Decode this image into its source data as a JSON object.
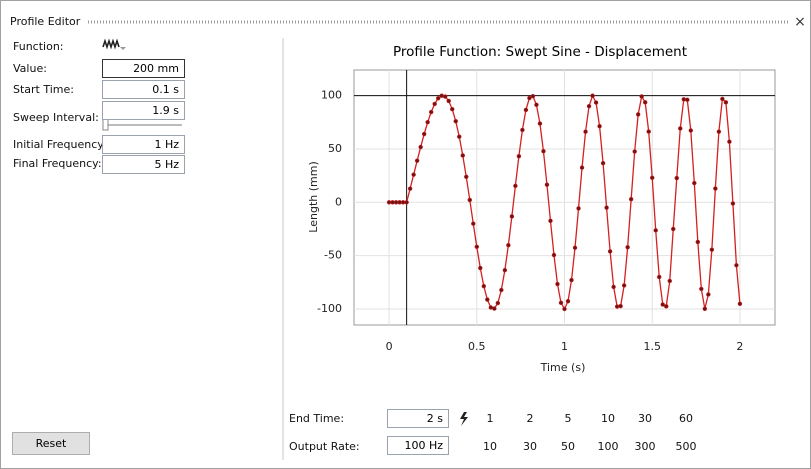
{
  "window": {
    "title": "Profile Editor"
  },
  "form": {
    "fields": [
      {
        "label": "Function:"
      },
      {
        "label": "Value:",
        "value": "200 mm"
      },
      {
        "label": "Start Time:",
        "value": "0.1 s"
      },
      {
        "label": "Sweep Interval:",
        "value": "1.9 s"
      },
      {
        "label": "Initial Frequency:",
        "value": "1 Hz"
      },
      {
        "label": "Final Frequency:",
        "value": "5 Hz"
      }
    ],
    "reset": "Reset"
  },
  "end_time": {
    "label": "End Time:",
    "value": "2 s",
    "presets": [
      "1",
      "2",
      "5",
      "10",
      "30",
      "60"
    ]
  },
  "output_rate": {
    "label": "Output Rate:",
    "value": "100 Hz",
    "presets": [
      "10",
      "30",
      "50",
      "100",
      "300",
      "500"
    ]
  },
  "chart_data": {
    "type": "line",
    "title": "Profile Function: Swept Sine - Displacement",
    "x_label": "Time (s)",
    "y_label": "Length (mm)",
    "x": [
      0,
      0.02,
      0.04,
      0.06,
      0.08,
      0.1,
      0.12,
      0.14,
      0.16,
      0.18,
      0.2,
      0.22,
      0.24,
      0.26,
      0.28,
      0.3,
      0.32,
      0.34,
      0.36,
      0.38,
      0.4,
      0.42,
      0.44,
      0.46,
      0.48,
      0.5,
      0.52,
      0.54,
      0.56,
      0.58,
      0.6,
      0.62,
      0.64,
      0.66,
      0.68,
      0.7,
      0.72,
      0.74,
      0.76,
      0.78,
      0.8,
      0.82,
      0.84,
      0.86,
      0.88,
      0.9,
      0.92,
      0.94,
      0.96,
      0.98,
      1,
      1.02,
      1.04,
      1.06,
      1.08,
      1.1,
      1.12,
      1.14,
      1.16,
      1.18,
      1.2,
      1.22,
      1.24,
      1.26,
      1.28,
      1.3,
      1.32,
      1.34,
      1.36,
      1.38,
      1.4,
      1.42,
      1.44,
      1.46,
      1.48,
      1.5,
      1.52,
      1.54,
      1.56,
      1.58,
      1.6,
      1.62,
      1.64,
      1.66,
      1.68,
      1.7,
      1.72,
      1.74,
      1.76,
      1.78,
      1.8,
      1.82,
      1.84,
      1.86,
      1.88,
      1.9,
      1.92,
      1.94,
      1.96,
      1.98,
      2
    ],
    "values": [
      0,
      0,
      0,
      0,
      0,
      0,
      12.8,
      25.9,
      39.0,
      51.8,
      64.0,
      75.1,
      84.6,
      92.2,
      97.5,
      99.9,
      99.1,
      95.0,
      87.3,
      76.0,
      61.5,
      43.9,
      23.9,
      2.2,
      -20.0,
      -41.7,
      -61.6,
      -78.6,
      -91.2,
      -98.6,
      -99.6,
      -94.4,
      -82.2,
      -63.6,
      -40.2,
      -13.2,
      15.4,
      43.2,
      67.8,
      86.6,
      97.7,
      99.5,
      91.4,
      73.8,
      47.9,
      16.5,
      -17.4,
      -49.4,
      -76.6,
      -94.2,
      -100,
      -92.7,
      -72.9,
      -42.6,
      -5.7,
      32.5,
      66.2,
      90.1,
      99.9,
      93.5,
      71.3,
      36.7,
      -5.0,
      -46.0,
      -79.3,
      -97.7,
      -97.3,
      -77.9,
      -42.1,
      2.9,
      47.6,
      82.4,
      99.2,
      93.7,
      66.3,
      23.0,
      -26.3,
      -70.0,
      -95.8,
      -97.5,
      -73.7,
      -25.0,
      22.7,
      69.2,
      96.5,
      96.1,
      67.3,
      18.0,
      -37.2,
      -81.2,
      -99.8,
      -86.4,
      -44.4,
      12.9,
      66.2,
      96.9,
      93.7,
      56.8,
      -1.1,
      -59.0,
      -95.1
    ],
    "color": "#d42020",
    "marker_color": "#6e1414",
    "xlim": [
      -0.2,
      2.2
    ],
    "xticks": [
      0,
      0.5,
      1,
      1.5,
      2
    ],
    "ylim": [
      -115,
      124
    ],
    "yticks": [
      -100,
      -50,
      0,
      50,
      100
    ],
    "grid": true,
    "reference_lines": {
      "x": 0.1,
      "y": 100
    }
  }
}
